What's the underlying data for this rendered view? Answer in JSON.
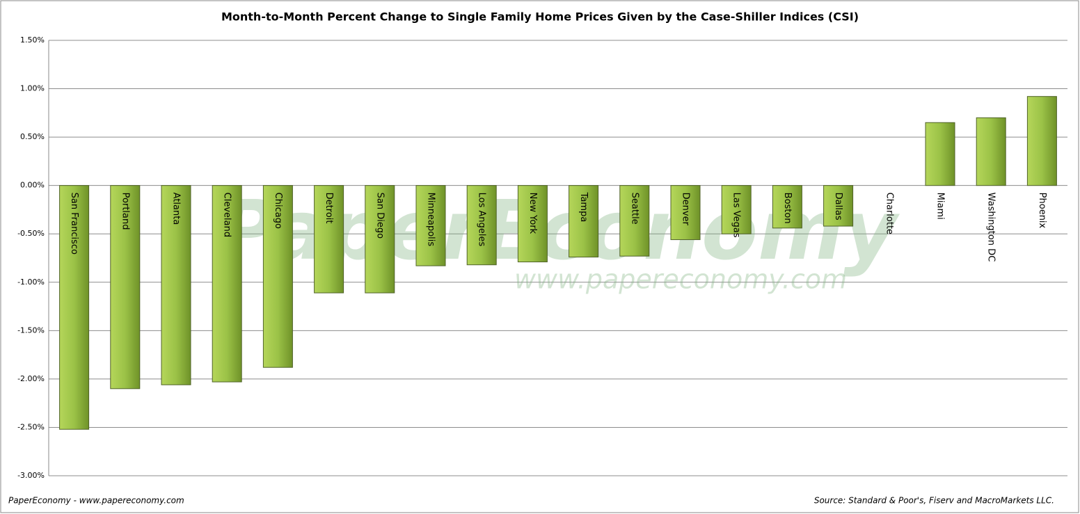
{
  "chart_data": {
    "type": "bar",
    "title": "Month-to-Month  Percent Change to Single Family Home Prices Given by the Case-Shiller Indices (CSI)",
    "watermark": "PaperEconomy",
    "watermark_url": "www.papereconomy.com",
    "credit": "PaperEconomy - www.papereconomy.com",
    "source": "Source: Standard & Poor's, Fiserv and MacroMarkets LLC.",
    "categories": [
      "San Francisco",
      "Portland",
      "Atlanta",
      "Cleveland",
      "Chicago",
      "Detroit",
      "San Diego",
      "Minneapolis",
      "Los Angeles",
      "New York",
      "Tampa",
      "Seattle",
      "Denver",
      "Las Vegas",
      "Boston",
      "Dallas",
      "Charlotte",
      "Miami",
      "Washington DC",
      "Phoenix"
    ],
    "values": [
      -2.52,
      -2.1,
      -2.06,
      -2.03,
      -1.88,
      -1.11,
      -1.11,
      -0.83,
      -0.82,
      -0.79,
      -0.74,
      -0.73,
      -0.56,
      -0.5,
      -0.44,
      -0.42,
      0,
      0.65,
      0.7,
      0.92
    ],
    "color": "#8db43a",
    "ylim": [
      -3.0,
      1.5
    ],
    "yticks": [
      {
        "value": -3.0,
        "label": "-3.00%"
      },
      {
        "value": -2.5,
        "label": "-2.50%"
      },
      {
        "value": -2.0,
        "label": "-2.00%"
      },
      {
        "value": -1.5,
        "label": "-1.50%"
      },
      {
        "value": -1.0,
        "label": "-1.00%"
      },
      {
        "value": -0.5,
        "label": "-0.50%"
      },
      {
        "value": 0,
        "label": "0.00%"
      },
      {
        "value": 0.5,
        "label": "0.50%"
      },
      {
        "value": 1.0,
        "label": "1.00%"
      },
      {
        "value": 1.5,
        "label": "1.50%"
      }
    ],
    "grid": true
  }
}
